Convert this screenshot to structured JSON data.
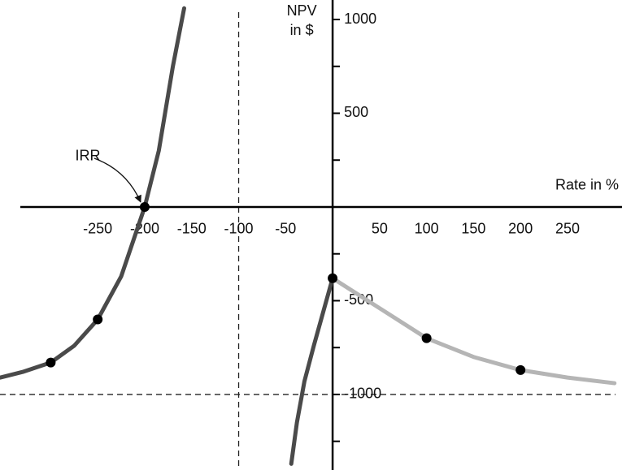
{
  "chart_data": {
    "type": "line",
    "x_label": "Rate in %",
    "y_label": [
      "NPV",
      "in $"
    ],
    "xlim": [
      -354,
      308
    ],
    "ylim": [
      -1403,
      1104
    ],
    "xticks": [
      -250,
      -200,
      -150,
      -100,
      -50,
      50,
      100,
      150,
      200,
      250
    ],
    "yticks": [
      1000,
      500,
      -500,
      -1000
    ],
    "y_minor_ticks": [
      750,
      250,
      -250,
      -750,
      -1250
    ],
    "asymptotes": {
      "x": -100,
      "y": -1000
    },
    "series": [
      {
        "color": "#4a4a4a",
        "x": [
          -354,
          -330,
          -300,
          -275,
          -250,
          -225,
          -200,
          -185,
          -170,
          -158
        ],
        "values": [
          -910,
          -880,
          -830,
          -740,
          -600,
          -370,
          0,
          300,
          750,
          1060
        ]
      },
      {
        "color": "#4a4a4a",
        "x": [
          0,
          -10,
          -20,
          -30,
          -38,
          -44
        ],
        "values": [
          -380,
          -560,
          -740,
          -930,
          -1150,
          -1370
        ]
      },
      {
        "color": "#b5b5b5",
        "x": [
          0,
          25,
          50,
          100,
          150,
          200,
          250,
          300
        ],
        "values": [
          -380,
          -460,
          -540,
          -700,
          -800,
          -870,
          -910,
          -940
        ]
      }
    ],
    "points": {
      "color": "#000000",
      "x": [
        -300,
        -250,
        -200,
        0,
        100,
        200
      ],
      "values": [
        -830,
        -600,
        0,
        -380,
        -700,
        -870
      ]
    },
    "annotation": {
      "text": "IRR",
      "x": -200,
      "y": 0
    }
  }
}
